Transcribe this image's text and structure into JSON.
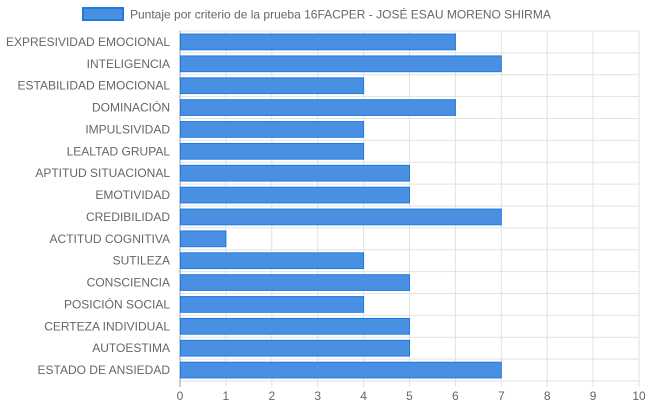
{
  "chart_data": {
    "type": "bar",
    "orientation": "horizontal",
    "title": "",
    "xlabel": "",
    "ylabel": "",
    "legend_position": "top-center",
    "grid": true,
    "xlim": [
      0,
      10
    ],
    "x_ticks": [
      0,
      1,
      2,
      3,
      4,
      5,
      6,
      7,
      8,
      9,
      10
    ],
    "categories": [
      "EXPRESIVIDAD EMOCIONAL",
      "INTELIGENCIA",
      "ESTABILIDAD EMOCIONAL",
      "DOMINACIÓN",
      "IMPULSIVIDAD",
      "LEALTAD GRUPAL",
      "APTITUD SITUACIONAL",
      "EMOTIVIDAD",
      "CREDIBILIDAD",
      "ACTITUD COGNITIVA",
      "SUTILEZA",
      "CONSCIENCIA",
      "POSICIÓN SOCIAL",
      "CERTEZA INDIVIDUAL",
      "AUTOESTIMA",
      "ESTADO DE ANSIEDAD"
    ],
    "series": [
      {
        "name": "Puntaje por criterio de la prueba 16FACPER - JOSÉ ESAU MORENO SHIRMA",
        "color": "#4a90e2",
        "border_color": "#1e7be0",
        "values": [
          6,
          7,
          4,
          6,
          4,
          4,
          5,
          5,
          7,
          1,
          4,
          5,
          4,
          5,
          5,
          7
        ]
      }
    ],
    "colors": {
      "grid": "#e2e2e2",
      "axis": "#999999",
      "text": "#666666"
    }
  }
}
